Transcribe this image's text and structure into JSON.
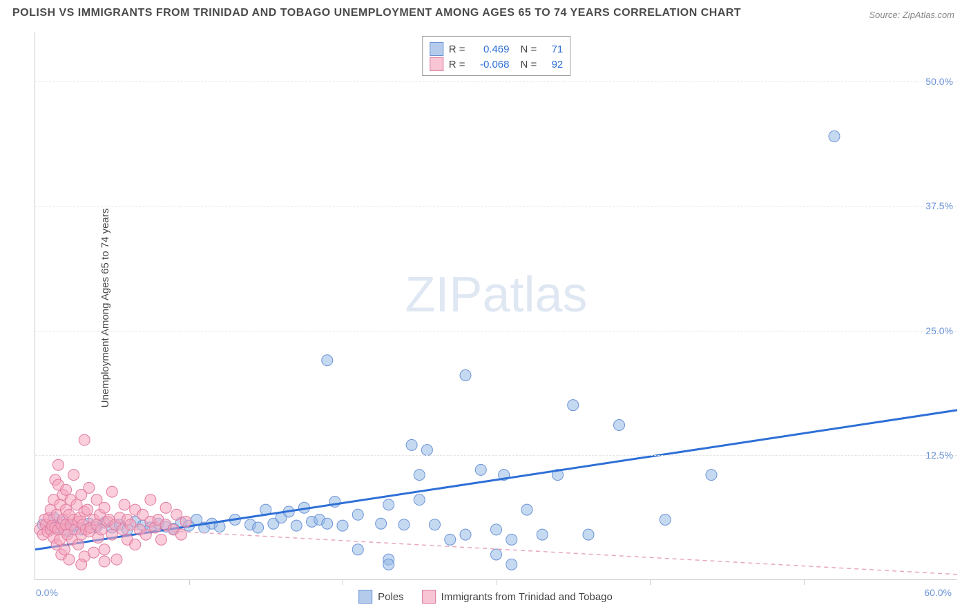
{
  "title": "POLISH VS IMMIGRANTS FROM TRINIDAD AND TOBAGO UNEMPLOYMENT AMONG AGES 65 TO 74 YEARS CORRELATION CHART",
  "source": "Source: ZipAtlas.com",
  "ylabel": "Unemployment Among Ages 65 to 74 years",
  "watermark_a": "ZIP",
  "watermark_b": "atlas",
  "chart": {
    "type": "scatter",
    "xlim": [
      0,
      60
    ],
    "ylim": [
      0,
      55
    ],
    "ytick_values": [
      12.5,
      25.0,
      37.5,
      50.0
    ],
    "ytick_labels": [
      "12.5%",
      "25.0%",
      "37.5%",
      "50.0%"
    ],
    "xtick_values": [
      10,
      20,
      30,
      40,
      50
    ],
    "origin_label": "0.0%",
    "xmax_label": "60.0%",
    "background_color": "#ffffff",
    "grid_color": "#e3e3e3",
    "marker_radius": 8,
    "series": [
      {
        "name": "Poles",
        "color_fill": "rgba(150,185,230,0.55)",
        "color_stroke": "#6b93d6",
        "R": "0.469",
        "N": "71",
        "trend": {
          "x1": 0,
          "y1": 3.0,
          "x2": 60,
          "y2": 17.0,
          "stroke": "#2e6fd6",
          "width": 3,
          "dash": "none"
        },
        "points": [
          [
            0.5,
            5.5
          ],
          [
            1.0,
            5.0
          ],
          [
            1.2,
            6.2
          ],
          [
            1.5,
            5.2
          ],
          [
            1.8,
            5.8
          ],
          [
            2.2,
            4.8
          ],
          [
            2.5,
            5.4
          ],
          [
            3.0,
            5.0
          ],
          [
            3.5,
            5.6
          ],
          [
            4.0,
            5.3
          ],
          [
            4.5,
            5.7
          ],
          [
            5.0,
            5.2
          ],
          [
            5.5,
            5.5
          ],
          [
            6.0,
            5.0
          ],
          [
            6.5,
            5.8
          ],
          [
            7.0,
            5.4
          ],
          [
            7.5,
            5.2
          ],
          [
            8.0,
            5.6
          ],
          [
            8.5,
            5.3
          ],
          [
            9.0,
            5.1
          ],
          [
            9.5,
            5.7
          ],
          [
            10.0,
            5.4
          ],
          [
            10.5,
            6.0
          ],
          [
            11.0,
            5.2
          ],
          [
            11.5,
            5.6
          ],
          [
            12.0,
            5.3
          ],
          [
            13.0,
            6.0
          ],
          [
            14.0,
            5.5
          ],
          [
            15.0,
            7.0
          ],
          [
            15.5,
            5.6
          ],
          [
            16.0,
            6.2
          ],
          [
            17.0,
            5.4
          ],
          [
            17.5,
            7.2
          ],
          [
            18.0,
            5.8
          ],
          [
            18.5,
            6.0
          ],
          [
            19.0,
            22.0
          ],
          [
            19.0,
            5.6
          ],
          [
            19.5,
            7.8
          ],
          [
            20.0,
            5.4
          ],
          [
            21.0,
            3.0
          ],
          [
            21.0,
            6.5
          ],
          [
            22.5,
            5.6
          ],
          [
            23.0,
            2.0
          ],
          [
            23.0,
            7.5
          ],
          [
            23.0,
            1.5
          ],
          [
            24.0,
            5.5
          ],
          [
            24.5,
            13.5
          ],
          [
            25.0,
            10.5
          ],
          [
            25.0,
            8.0
          ],
          [
            25.5,
            13.0
          ],
          [
            26.0,
            5.5
          ],
          [
            27.0,
            4.0
          ],
          [
            28.0,
            4.5
          ],
          [
            28.0,
            20.5
          ],
          [
            29.0,
            11.0
          ],
          [
            30.0,
            2.5
          ],
          [
            30.0,
            5.0
          ],
          [
            30.5,
            10.5
          ],
          [
            31.0,
            4.0
          ],
          [
            31.0,
            1.5
          ],
          [
            32.0,
            7.0
          ],
          [
            33.0,
            4.5
          ],
          [
            34.0,
            10.5
          ],
          [
            35.0,
            17.5
          ],
          [
            36.0,
            4.5
          ],
          [
            38.0,
            15.5
          ],
          [
            41.0,
            6.0
          ],
          [
            44.0,
            10.5
          ],
          [
            52.0,
            44.5
          ],
          [
            14.5,
            5.2
          ],
          [
            16.5,
            6.8
          ]
        ]
      },
      {
        "name": "Immigrants from Trinidad and Tobago",
        "color_fill": "rgba(245,165,190,0.55)",
        "color_stroke": "#e07ba0",
        "R": "-0.068",
        "N": "92",
        "trend": {
          "x1": 0,
          "y1": 5.6,
          "x2": 60,
          "y2": 0.5,
          "stroke": "#e9a7bd",
          "width": 1.5,
          "dash": "6,5"
        },
        "points": [
          [
            0.3,
            5.0
          ],
          [
            0.5,
            4.5
          ],
          [
            0.6,
            6.0
          ],
          [
            0.7,
            5.5
          ],
          [
            0.8,
            4.8
          ],
          [
            0.9,
            6.2
          ],
          [
            1.0,
            5.0
          ],
          [
            1.0,
            7.0
          ],
          [
            1.1,
            5.4
          ],
          [
            1.2,
            4.2
          ],
          [
            1.2,
            8.0
          ],
          [
            1.3,
            5.2
          ],
          [
            1.3,
            10.0
          ],
          [
            1.4,
            3.5
          ],
          [
            1.4,
            6.5
          ],
          [
            1.5,
            5.0
          ],
          [
            1.5,
            9.5
          ],
          [
            1.5,
            11.5
          ],
          [
            1.6,
            4.0
          ],
          [
            1.6,
            7.5
          ],
          [
            1.7,
            5.5
          ],
          [
            1.7,
            2.5
          ],
          [
            1.8,
            6.0
          ],
          [
            1.8,
            8.5
          ],
          [
            1.9,
            5.0
          ],
          [
            1.9,
            3.0
          ],
          [
            2.0,
            7.0
          ],
          [
            2.0,
            5.5
          ],
          [
            2.0,
            9.0
          ],
          [
            2.1,
            4.5
          ],
          [
            2.2,
            6.5
          ],
          [
            2.2,
            2.0
          ],
          [
            2.3,
            5.5
          ],
          [
            2.3,
            8.0
          ],
          [
            2.4,
            4.0
          ],
          [
            2.5,
            6.0
          ],
          [
            2.5,
            10.5
          ],
          [
            2.6,
            5.0
          ],
          [
            2.7,
            7.5
          ],
          [
            2.8,
            3.5
          ],
          [
            2.8,
            5.8
          ],
          [
            2.9,
            6.2
          ],
          [
            3.0,
            4.5
          ],
          [
            3.0,
            8.5
          ],
          [
            3.1,
            5.5
          ],
          [
            3.2,
            2.3
          ],
          [
            3.2,
            6.8
          ],
          [
            3.3,
            5.0
          ],
          [
            3.4,
            7.0
          ],
          [
            3.5,
            4.8
          ],
          [
            3.5,
            9.2
          ],
          [
            3.6,
            5.2
          ],
          [
            3.8,
            6.0
          ],
          [
            3.8,
            2.7
          ],
          [
            4.0,
            5.5
          ],
          [
            4.0,
            8.0
          ],
          [
            4.1,
            4.2
          ],
          [
            4.2,
            6.5
          ],
          [
            4.3,
            5.0
          ],
          [
            4.5,
            7.2
          ],
          [
            4.5,
            3.0
          ],
          [
            4.7,
            5.8
          ],
          [
            4.8,
            6.0
          ],
          [
            5.0,
            4.5
          ],
          [
            5.0,
            8.8
          ],
          [
            5.2,
            5.5
          ],
          [
            5.3,
            2.0
          ],
          [
            5.5,
            6.2
          ],
          [
            5.7,
            5.0
          ],
          [
            5.8,
            7.5
          ],
          [
            6.0,
            4.0
          ],
          [
            6.0,
            6.0
          ],
          [
            6.2,
            5.5
          ],
          [
            6.5,
            3.5
          ],
          [
            6.5,
            7.0
          ],
          [
            6.8,
            5.0
          ],
          [
            7.0,
            6.5
          ],
          [
            7.2,
            4.5
          ],
          [
            7.5,
            5.8
          ],
          [
            7.5,
            8.0
          ],
          [
            7.8,
            5.2
          ],
          [
            8.0,
            6.0
          ],
          [
            8.2,
            4.0
          ],
          [
            8.5,
            5.5
          ],
          [
            8.5,
            7.2
          ],
          [
            9.0,
            5.0
          ],
          [
            9.2,
            6.5
          ],
          [
            9.5,
            4.5
          ],
          [
            9.8,
            5.8
          ],
          [
            3.2,
            14.0
          ],
          [
            3.0,
            1.5
          ],
          [
            4.5,
            1.8
          ]
        ]
      }
    ]
  },
  "legend_bottom": {
    "item1": "Poles",
    "item2": "Immigrants from Trinidad and Tobago"
  },
  "stat_legend": {
    "r_label": "R =",
    "n_label": "N ="
  }
}
